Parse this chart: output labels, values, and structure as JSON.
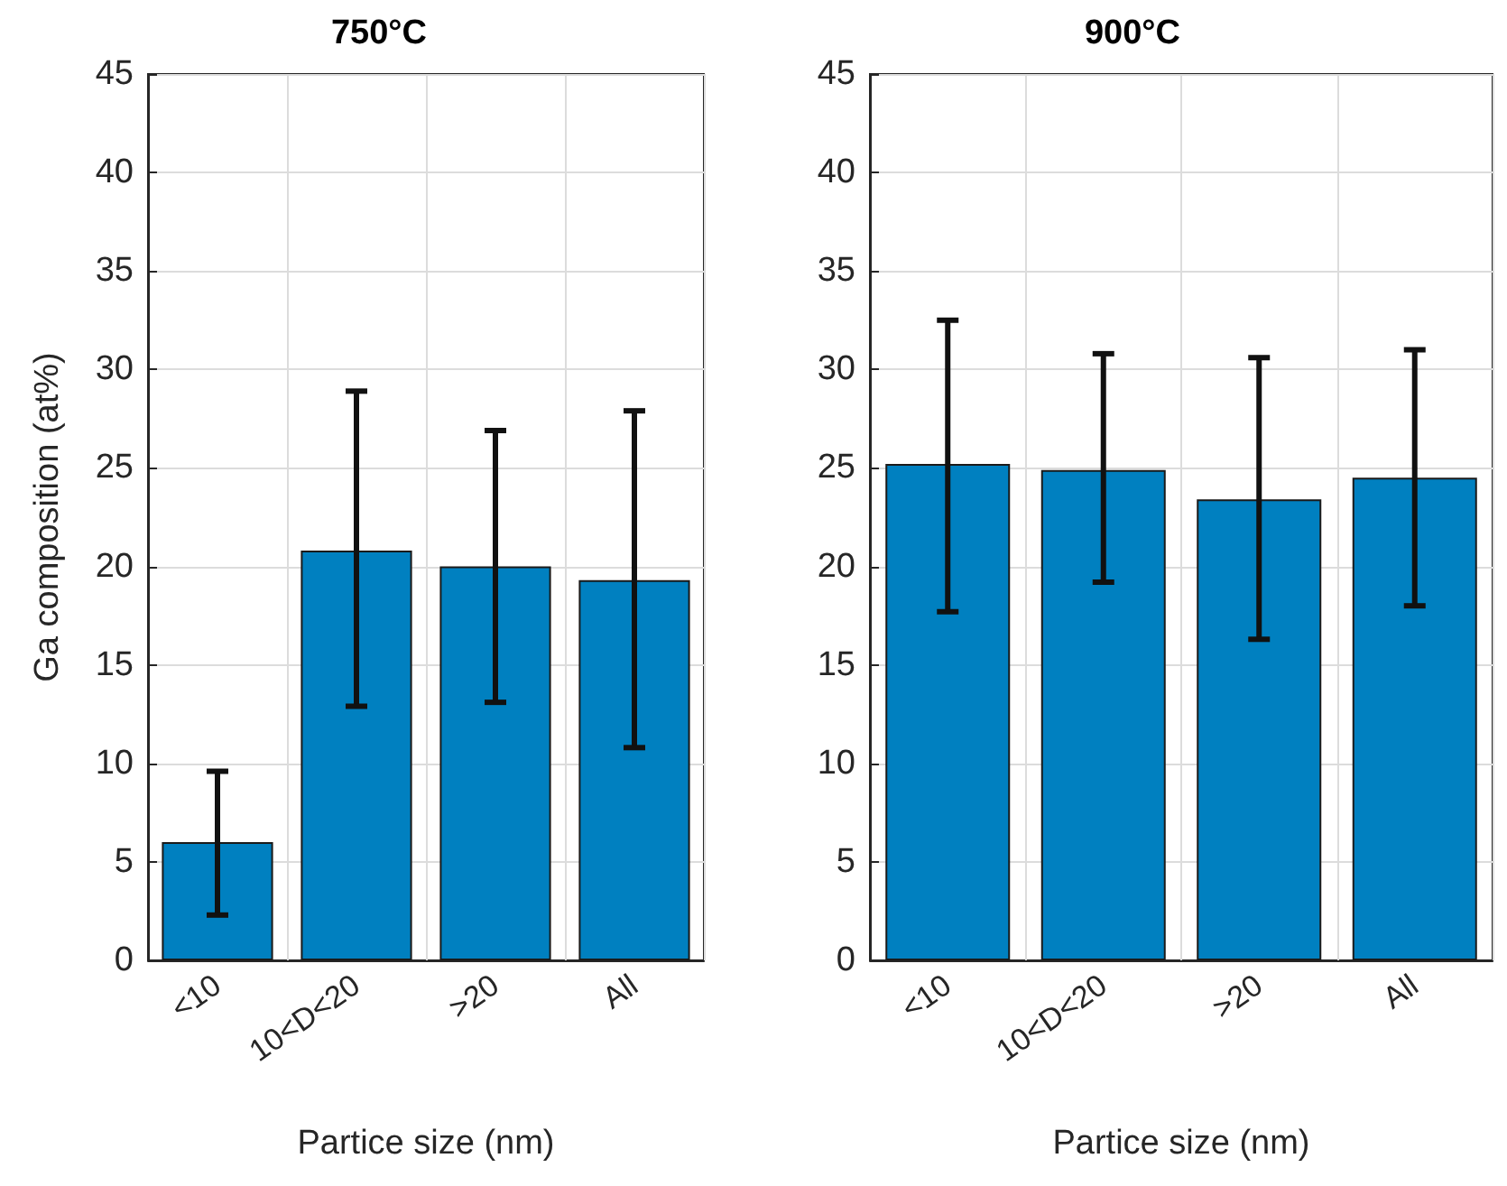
{
  "chart_data": [
    {
      "type": "bar",
      "title": "750°C",
      "xlabel": "Partice size (nm)",
      "ylabel": "Ga composition (at%)",
      "categories": [
        "<10",
        "10<D<20",
        ">20",
        "All"
      ],
      "series": [
        {
          "color": "#0080c0",
          "values": [
            6.0,
            20.8,
            20.0,
            19.3
          ],
          "errors": [
            [
              2.3,
              9.6
            ],
            [
              12.9,
              28.9
            ],
            [
              13.1,
              26.9
            ],
            [
              10.8,
              27.9
            ]
          ]
        }
      ],
      "ylim": [
        0,
        45
      ],
      "yticks": [
        0,
        5,
        10,
        15,
        20,
        25,
        30,
        35,
        40,
        45
      ],
      "grid": true
    },
    {
      "type": "bar",
      "title": "900°C",
      "xlabel": "Partice size (nm)",
      "categories": [
        "<10",
        "10<D<20",
        ">20",
        "All"
      ],
      "series": [
        {
          "color": "#0080c0",
          "values": [
            25.2,
            24.9,
            23.4,
            24.5
          ],
          "errors": [
            [
              17.7,
              32.5
            ],
            [
              19.2,
              30.8
            ],
            [
              16.3,
              30.6
            ],
            [
              18.0,
              31.0
            ]
          ]
        }
      ],
      "ylim": [
        0,
        45
      ],
      "yticks": [
        0,
        5,
        10,
        15,
        20,
        25,
        30,
        35,
        40,
        45
      ],
      "grid": true
    }
  ]
}
